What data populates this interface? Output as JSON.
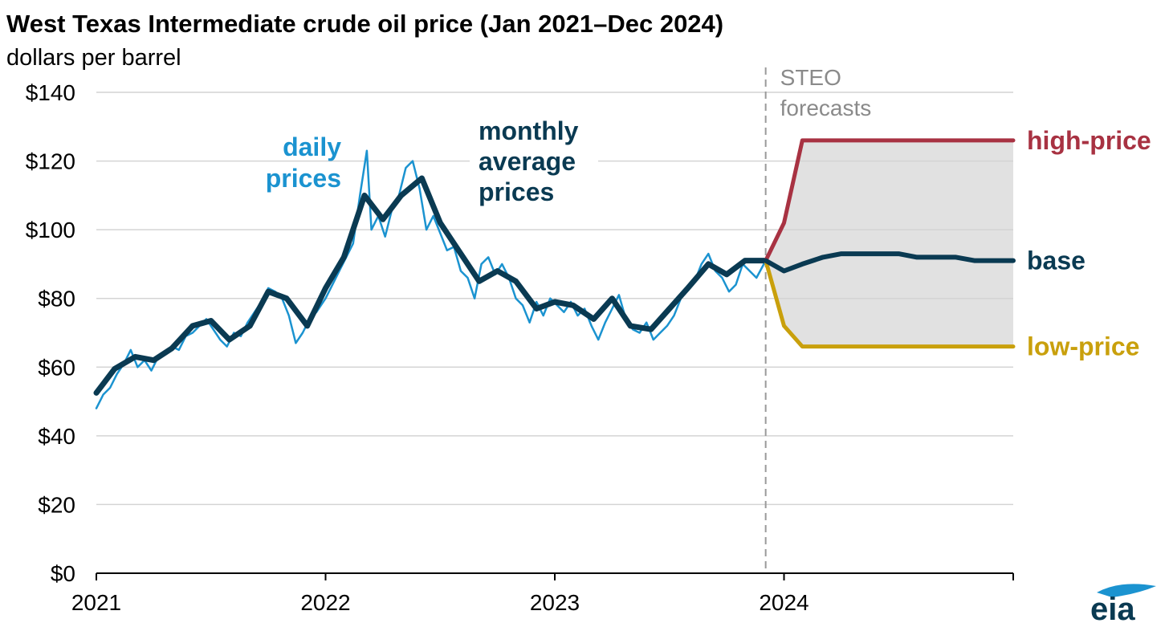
{
  "title": "West Texas Intermediate crude oil price (Jan 2021–Dec 2024)",
  "subtitle": "dollars per barrel",
  "colors": {
    "daily": "#1b93d0",
    "monthly": "#0a3a52",
    "high": "#a83242",
    "base": "#0a3a52",
    "low": "#c9a00c",
    "band": "#e1e1e1",
    "grid": "#d4d4d4",
    "axis": "#000000",
    "forecast_line": "#9a9a9a",
    "logo": "#0a3a52",
    "logo_swoosh": "#1b93d0"
  },
  "logo": "eia",
  "chart_data": {
    "type": "line",
    "title": "West Texas Intermediate crude oil price (Jan 2021–Dec 2024)",
    "ylabel": "dollars per barrel",
    "xlim": [
      2021.0,
      2025.0
    ],
    "ylim": [
      0,
      140
    ],
    "x_ticks": [
      2021,
      2022,
      2023,
      2024
    ],
    "x_tick_labels": [
      "2021",
      "2022",
      "2023",
      "2024"
    ],
    "y_ticks": [
      0,
      20,
      40,
      60,
      80,
      100,
      120,
      140
    ],
    "y_tick_labels": [
      "$0",
      "$20",
      "$40",
      "$60",
      "$80",
      "$100",
      "$120",
      "$140"
    ],
    "grid": true,
    "forecast_start": 2023.92,
    "forecast_label": [
      "STEO",
      "forecasts"
    ],
    "annotations": {
      "daily": [
        "daily",
        "prices"
      ],
      "monthly": [
        "monthly",
        "average",
        "prices"
      ]
    },
    "series": [
      {
        "name": "daily prices",
        "style": "thin",
        "x": [
          2021.0,
          2021.03,
          2021.06,
          2021.09,
          2021.12,
          2021.15,
          2021.18,
          2021.21,
          2021.24,
          2021.27,
          2021.3,
          2021.33,
          2021.36,
          2021.39,
          2021.42,
          2021.45,
          2021.48,
          2021.51,
          2021.54,
          2021.57,
          2021.6,
          2021.63,
          2021.66,
          2021.69,
          2021.72,
          2021.75,
          2021.78,
          2021.81,
          2021.84,
          2021.87,
          2021.9,
          2021.93,
          2021.96,
          2022.0,
          2022.03,
          2022.06,
          2022.09,
          2022.12,
          2022.15,
          2022.18,
          2022.2,
          2022.23,
          2022.26,
          2022.29,
          2022.32,
          2022.35,
          2022.38,
          2022.41,
          2022.44,
          2022.47,
          2022.5,
          2022.53,
          2022.56,
          2022.59,
          2022.62,
          2022.65,
          2022.68,
          2022.71,
          2022.74,
          2022.77,
          2022.8,
          2022.83,
          2022.86,
          2022.89,
          2022.92,
          2022.95,
          2022.98,
          2023.01,
          2023.04,
          2023.07,
          2023.1,
          2023.13,
          2023.16,
          2023.19,
          2023.22,
          2023.25,
          2023.28,
          2023.31,
          2023.34,
          2023.37,
          2023.4,
          2023.43,
          2023.46,
          2023.49,
          2023.52,
          2023.55,
          2023.58,
          2023.61,
          2023.64,
          2023.67,
          2023.7,
          2023.73,
          2023.76,
          2023.79,
          2023.82,
          2023.85,
          2023.88,
          2023.92
        ],
        "values": [
          48,
          52,
          54,
          58,
          61,
          65,
          60,
          62,
          59,
          63,
          64,
          66,
          65,
          69,
          70,
          72,
          74,
          71,
          68,
          66,
          70,
          69,
          73,
          76,
          79,
          83,
          82,
          80,
          75,
          67,
          70,
          74,
          76,
          80,
          84,
          88,
          92,
          96,
          110,
          123,
          100,
          104,
          98,
          106,
          110,
          118,
          120,
          112,
          100,
          104,
          99,
          94,
          95,
          88,
          86,
          80,
          90,
          92,
          87,
          90,
          86,
          80,
          78,
          73,
          79,
          75,
          80,
          78,
          76,
          79,
          75,
          77,
          72,
          68,
          73,
          77,
          81,
          74,
          71,
          70,
          73,
          68,
          70,
          72,
          75,
          80,
          83,
          85,
          90,
          93,
          88,
          86,
          82,
          84,
          90,
          88,
          86,
          91
        ]
      },
      {
        "name": "monthly average prices",
        "style": "thick",
        "x": [
          2021.0,
          2021.08,
          2021.17,
          2021.25,
          2021.33,
          2021.42,
          2021.5,
          2021.58,
          2021.67,
          2021.75,
          2021.83,
          2021.92,
          2022.0,
          2022.08,
          2022.17,
          2022.25,
          2022.33,
          2022.42,
          2022.5,
          2022.58,
          2022.67,
          2022.75,
          2022.83,
          2022.92,
          2023.0,
          2023.08,
          2023.17,
          2023.25,
          2023.33,
          2023.42,
          2023.5,
          2023.58,
          2023.67,
          2023.75,
          2023.83,
          2023.92
        ],
        "values": [
          52.5,
          59.5,
          63,
          62,
          65.5,
          72,
          73.5,
          68,
          72,
          82,
          80,
          72,
          83,
          92,
          110,
          103,
          110,
          115,
          102,
          94,
          85,
          88,
          85,
          77,
          79,
          78,
          74,
          80,
          72,
          71,
          77,
          83,
          90,
          87,
          91,
          91
        ]
      },
      {
        "name": "high-price",
        "style": "forecast",
        "x": [
          2023.92,
          2024.0,
          2024.08,
          2024.17,
          2024.25,
          2024.33,
          2024.42,
          2024.5,
          2024.58,
          2024.67,
          2024.75,
          2024.83,
          2024.92,
          2025.0
        ],
        "values": [
          91,
          102,
          126,
          126,
          126,
          126,
          126,
          126,
          126,
          126,
          126,
          126,
          126,
          126
        ]
      },
      {
        "name": "base",
        "style": "forecast",
        "x": [
          2023.92,
          2024.0,
          2024.08,
          2024.17,
          2024.25,
          2024.33,
          2024.42,
          2024.5,
          2024.58,
          2024.67,
          2024.75,
          2024.83,
          2024.92,
          2025.0
        ],
        "values": [
          91,
          88,
          90,
          92,
          93,
          93,
          93,
          93,
          92,
          92,
          92,
          91,
          91,
          91
        ]
      },
      {
        "name": "low-price",
        "style": "forecast",
        "x": [
          2023.92,
          2024.0,
          2024.08,
          2024.17,
          2024.25,
          2024.33,
          2024.42,
          2024.5,
          2024.58,
          2024.67,
          2024.75,
          2024.83,
          2024.92,
          2025.0
        ],
        "values": [
          91,
          72,
          66,
          66,
          66,
          66,
          66,
          66,
          66,
          66,
          66,
          66,
          66,
          66
        ]
      }
    ]
  }
}
